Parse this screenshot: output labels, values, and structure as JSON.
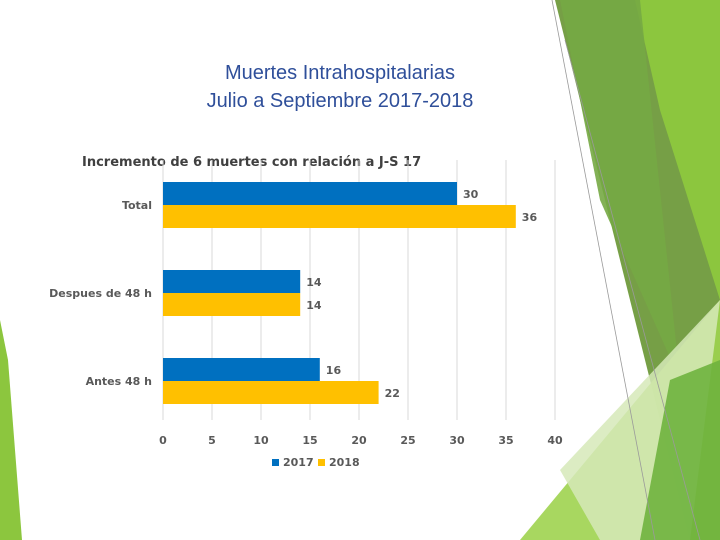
{
  "slide": {
    "title_line1": "Muertes Intrahospitalarias",
    "title_line2": "Julio a Septiembre 2017-2018"
  },
  "colors": {
    "series_2017": "#0070c0",
    "series_2018": "#ffc000",
    "grid": "#d9d9d9",
    "label": "#595959"
  },
  "chart_data": {
    "type": "bar",
    "orientation": "horizontal",
    "title": "Incremento de 6 muertes con relación a J-S 17",
    "categories": [
      "Total",
      "Despues de 48 h",
      "Antes 48 h"
    ],
    "series": [
      {
        "name": "2017",
        "values": [
          30,
          14,
          16
        ]
      },
      {
        "name": "2018",
        "values": [
          36,
          14,
          22
        ]
      }
    ],
    "xlim": [
      0,
      40
    ],
    "xticks": [
      0,
      5,
      10,
      15,
      20,
      25,
      30,
      35,
      40
    ],
    "grid": true,
    "legend": "bottom",
    "xlabel": "",
    "ylabel": ""
  }
}
